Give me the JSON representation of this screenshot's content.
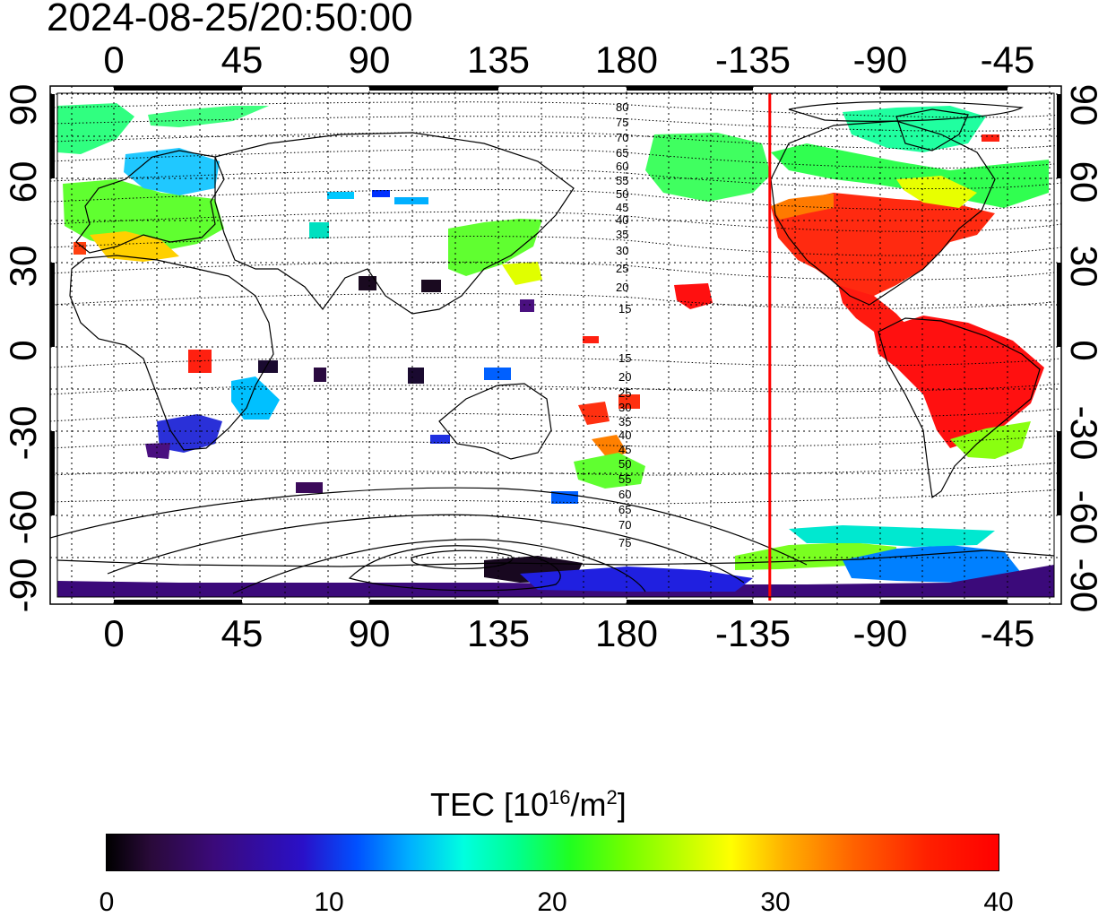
{
  "title": "2024-08-25/20:50:00",
  "axes": {
    "x_ticks_top": [
      "0",
      "45",
      "90",
      "135",
      "180",
      "-135",
      "-90",
      "-45"
    ],
    "x_ticks_bottom": [
      "0",
      "45",
      "90",
      "135",
      "180",
      "-135",
      "-90",
      "-45"
    ],
    "y_ticks_left": [
      "90",
      "60",
      "30",
      "0",
      "-30",
      "-60",
      "-90"
    ],
    "y_ticks_right": [
      "90",
      "60",
      "30",
      "0",
      "-30",
      "-60",
      "-90"
    ],
    "lon_range": [
      -20,
      320
    ],
    "lat_range": [
      -90,
      90
    ]
  },
  "contour_labels_north": [
    "80",
    "75",
    "70",
    "65",
    "60",
    "55",
    "50",
    "45",
    "40",
    "35",
    "30",
    "25",
    "20",
    "15"
  ],
  "contour_labels_south": [
    "15",
    "20",
    "25",
    "30",
    "35",
    "40",
    "45",
    "50",
    "55",
    "60",
    "65",
    "70",
    "75"
  ],
  "marker_line": {
    "longitude": -137,
    "color": "#ff0000"
  },
  "colorbar": {
    "title_main": "TEC  [10",
    "title_sup1": "16",
    "title_mid": "/m",
    "title_sup2": "2",
    "title_end": "]",
    "ticks": [
      "0",
      "10",
      "20",
      "30",
      "40"
    ],
    "range": [
      0,
      40
    ]
  }
}
